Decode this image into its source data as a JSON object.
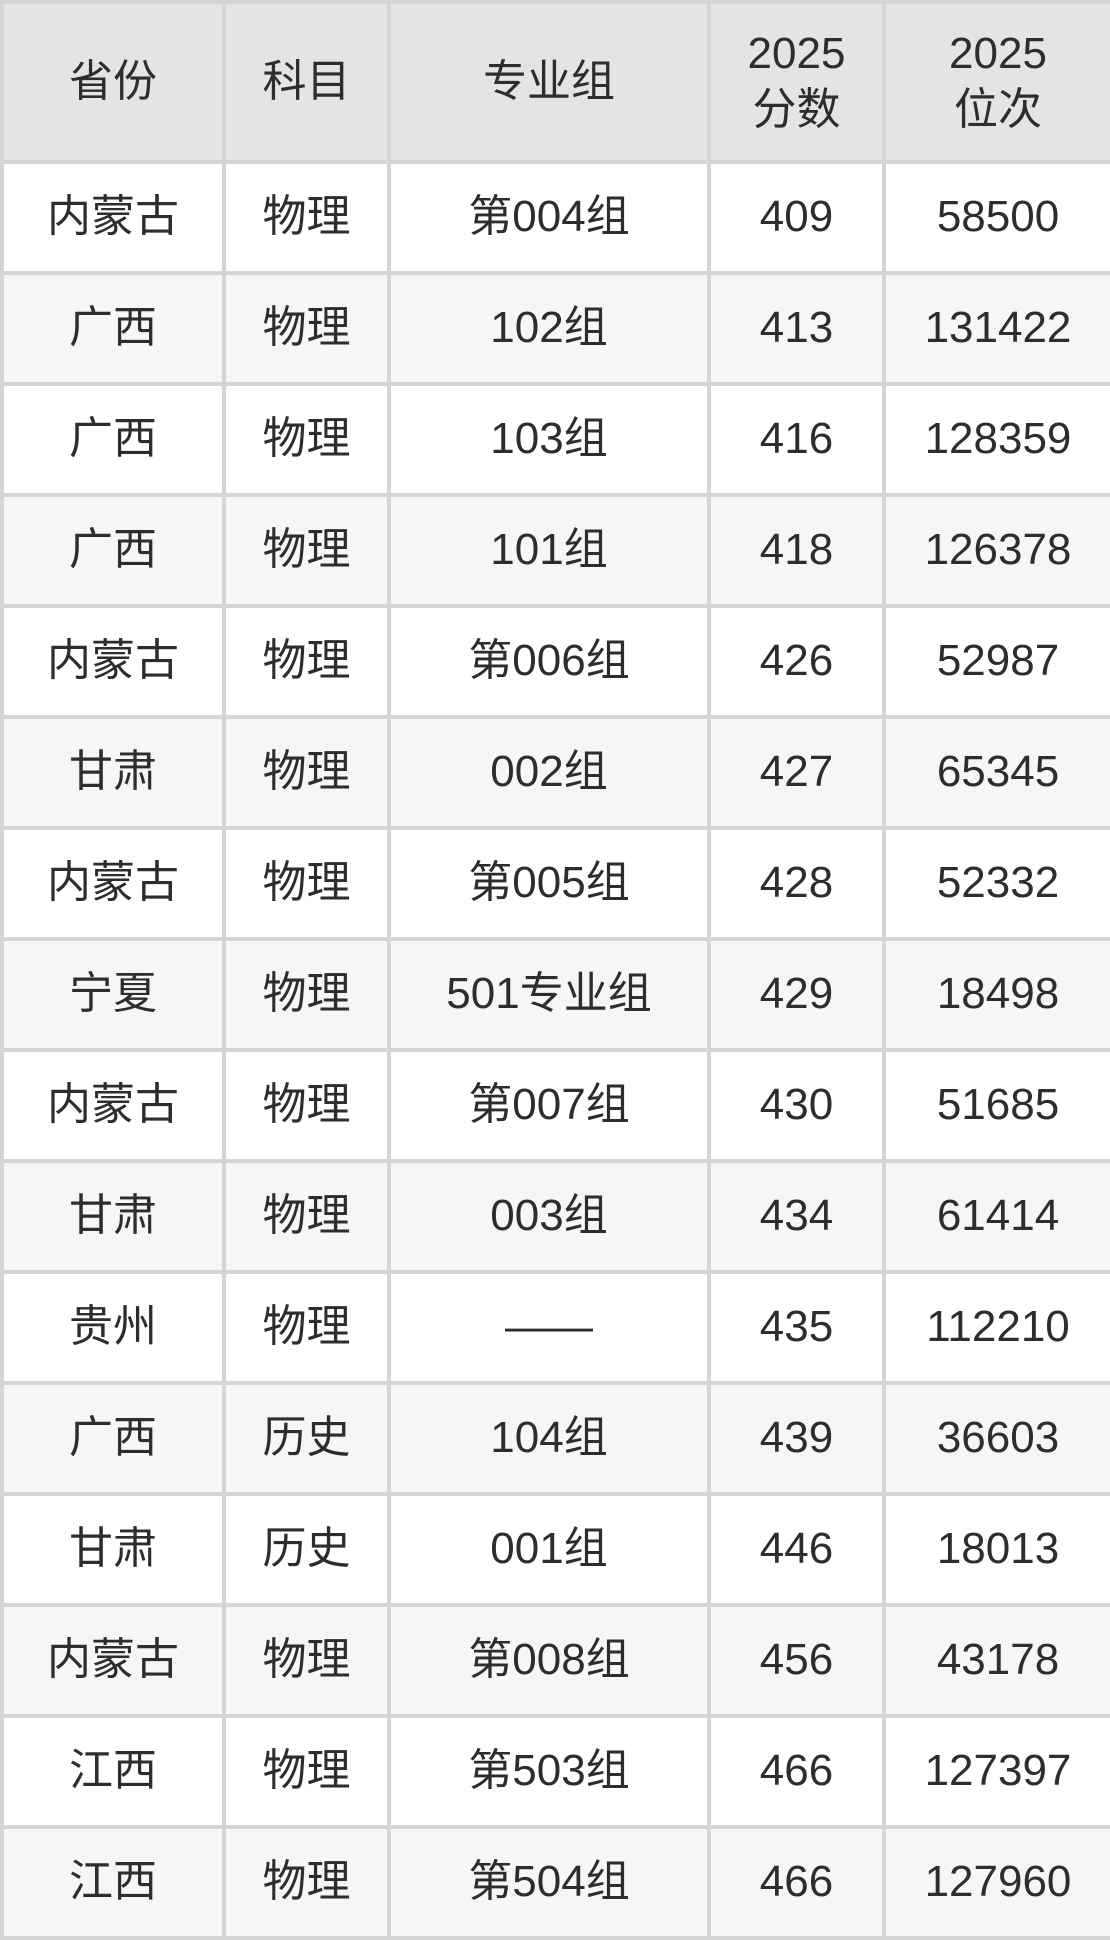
{
  "chart_data": {
    "type": "table",
    "columns": [
      "省份",
      "科目",
      "专业组",
      "2025\n分数",
      "2025\n位次"
    ],
    "column_names": [
      "province",
      "subject",
      "major-group",
      "score-2025",
      "rank-2025"
    ],
    "rows": [
      [
        "内蒙古",
        "物理",
        "第004组",
        "409",
        "58500"
      ],
      [
        "广西",
        "物理",
        "102组",
        "413",
        "131422"
      ],
      [
        "广西",
        "物理",
        "103组",
        "416",
        "128359"
      ],
      [
        "广西",
        "物理",
        "101组",
        "418",
        "126378"
      ],
      [
        "内蒙古",
        "物理",
        "第006组",
        "426",
        "52987"
      ],
      [
        "甘肃",
        "物理",
        "002组",
        "427",
        "65345"
      ],
      [
        "内蒙古",
        "物理",
        "第005组",
        "428",
        "52332"
      ],
      [
        "宁夏",
        "物理",
        "501专业组",
        "429",
        "18498"
      ],
      [
        "内蒙古",
        "物理",
        "第007组",
        "430",
        "51685"
      ],
      [
        "甘肃",
        "物理",
        "003组",
        "434",
        "61414"
      ],
      [
        "贵州",
        "物理",
        "——",
        "435",
        "112210"
      ],
      [
        "广西",
        "历史",
        "104组",
        "439",
        "36603"
      ],
      [
        "甘肃",
        "历史",
        "001组",
        "446",
        "18013"
      ],
      [
        "内蒙古",
        "物理",
        "第008组",
        "456",
        "43178"
      ],
      [
        "江西",
        "物理",
        "第503组",
        "466",
        "127397"
      ],
      [
        "江西",
        "物理",
        "第504组",
        "466",
        "127960"
      ]
    ]
  },
  "colors": {
    "header_bg": "#e4e4e4",
    "row_alt_bg": "#f6f6f6",
    "row_bg": "#ffffff",
    "border": "#d5d5d5",
    "text": "#2d2d2d"
  }
}
